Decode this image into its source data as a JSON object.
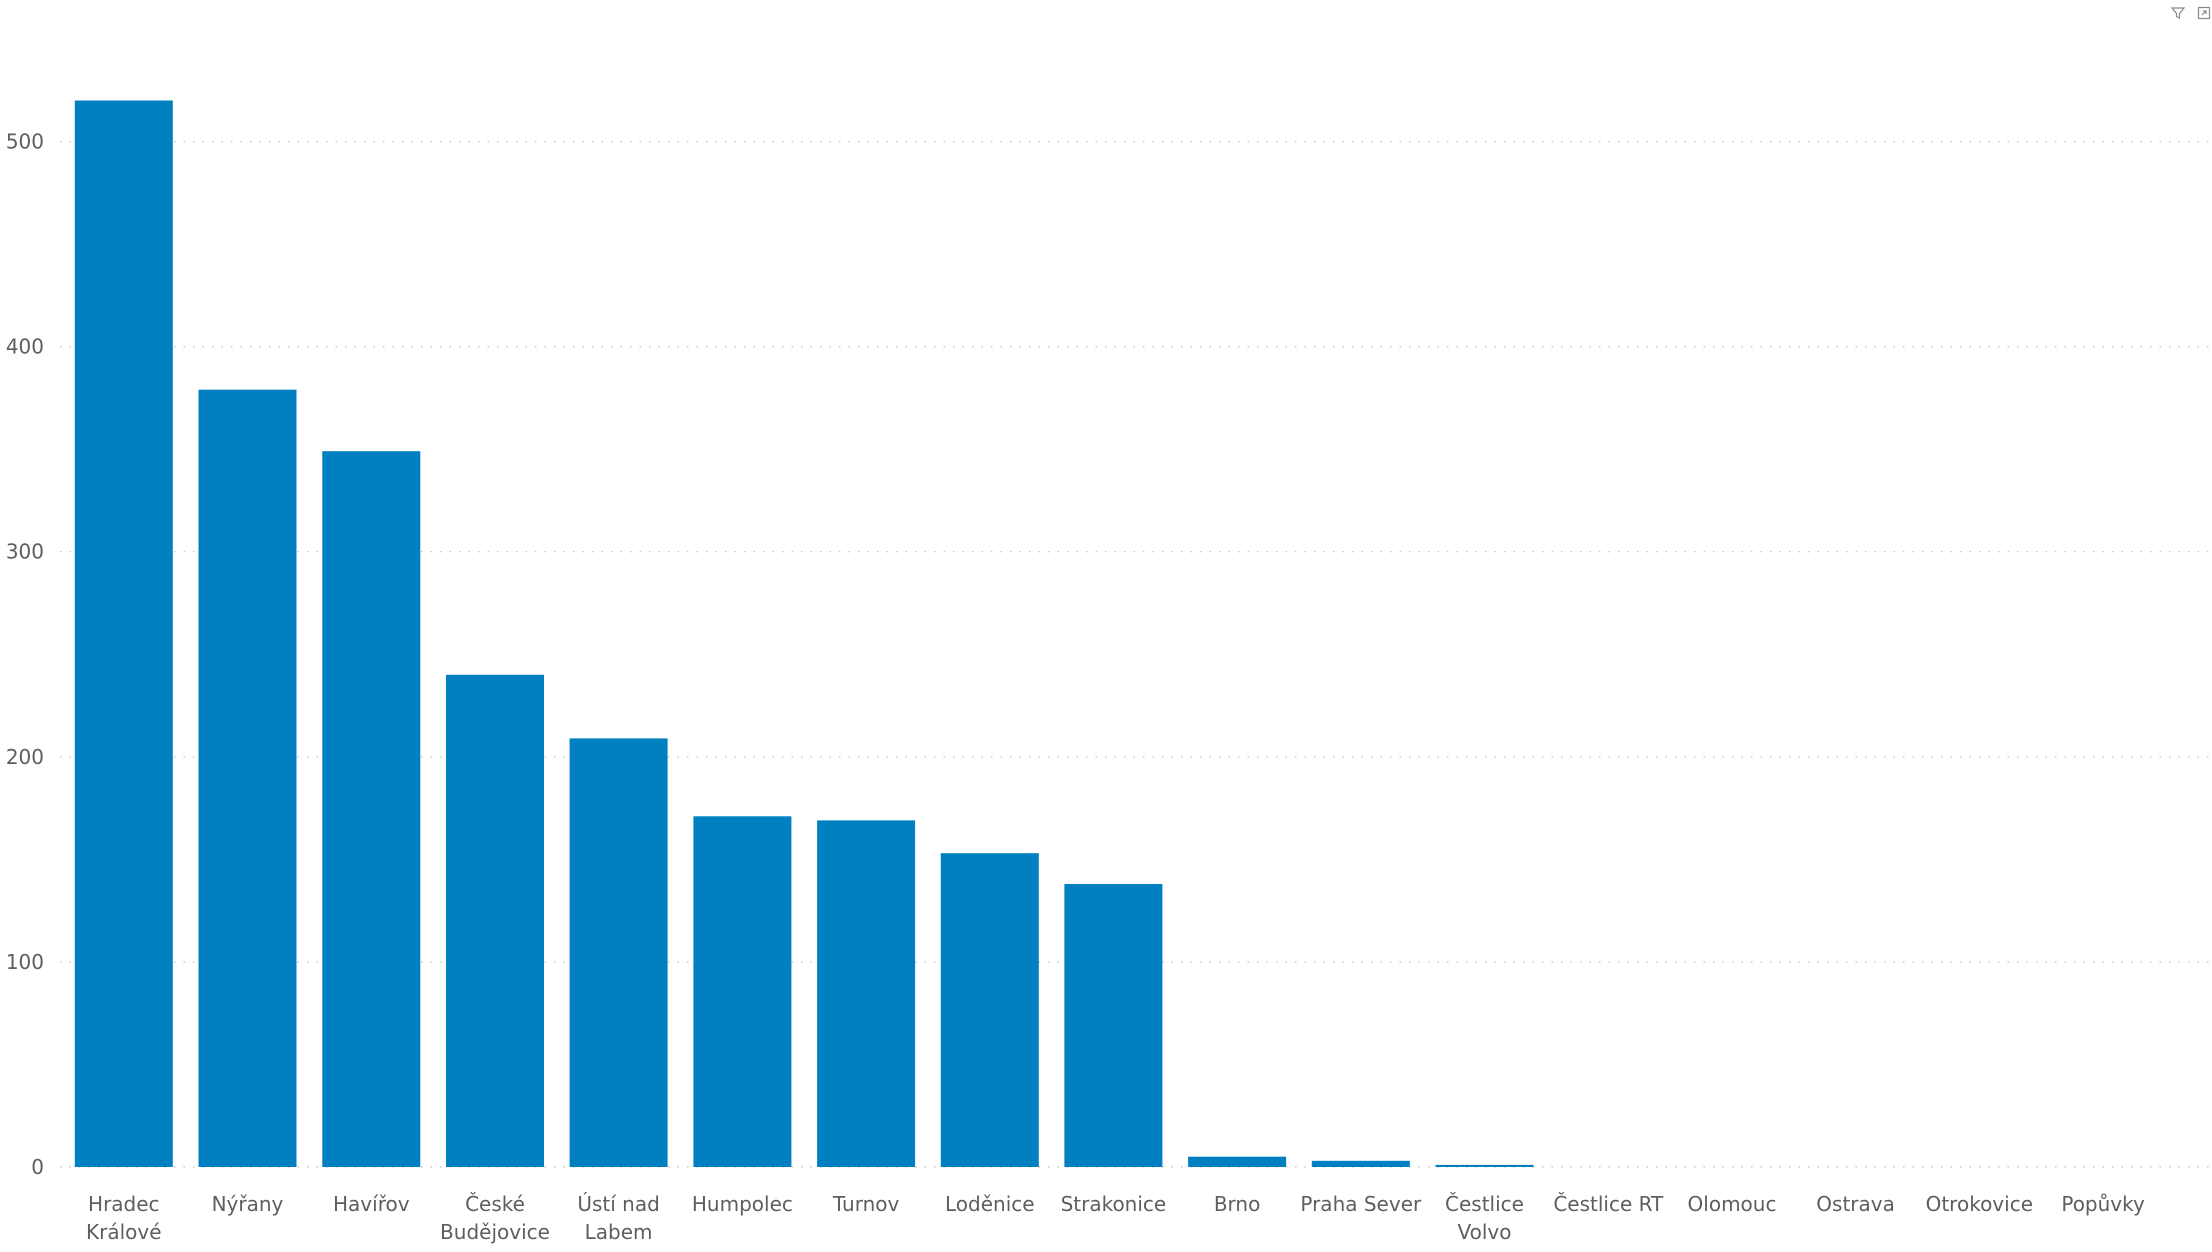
{
  "chart_data": {
    "type": "bar",
    "categories": [
      "Hradec Králové",
      "Nýřany",
      "Havířov",
      "České Budějovice",
      "Ústí nad Labem",
      "Humpolec",
      "Turnov",
      "Loděnice",
      "Strakonice",
      "Brno",
      "Praha Sever",
      "Čestlice Volvo",
      "Čestlice RT",
      "Olomouc",
      "Ostrava",
      "Otrokovice",
      "Popůvky"
    ],
    "category_lines": [
      [
        "Hradec",
        "Králové"
      ],
      [
        "Nýřany"
      ],
      [
        "Havířov"
      ],
      [
        "České",
        "Budějovice"
      ],
      [
        "Ústí nad",
        "Labem"
      ],
      [
        "Humpolec"
      ],
      [
        "Turnov"
      ],
      [
        "Loděnice"
      ],
      [
        "Strakonice"
      ],
      [
        "Brno"
      ],
      [
        "Praha Sever"
      ],
      [
        "Čestlice",
        "Volvo"
      ],
      [
        "Čestlice RT"
      ],
      [
        "Olomouc"
      ],
      [
        "Ostrava"
      ],
      [
        "Otrokovice"
      ],
      [
        "Popůvky"
      ]
    ],
    "values": [
      520,
      379,
      349,
      240,
      209,
      171,
      169,
      153,
      138,
      5,
      3,
      1,
      0,
      0,
      0,
      0,
      0
    ],
    "ylim": [
      0,
      530
    ],
    "yticks": [
      0,
      100,
      200,
      300,
      400,
      500
    ],
    "grid": true,
    "bar_color": "#0080C0",
    "grid_color": "#C8C8C8",
    "tick_label_color": "#605E5C",
    "category_label_color": "#605E5C",
    "title": "",
    "xlabel": "",
    "ylabel": ""
  },
  "toolbar": {
    "icons": [
      "filter-icon",
      "focus-mode-icon"
    ],
    "icon_color": "#8A8A8A"
  }
}
